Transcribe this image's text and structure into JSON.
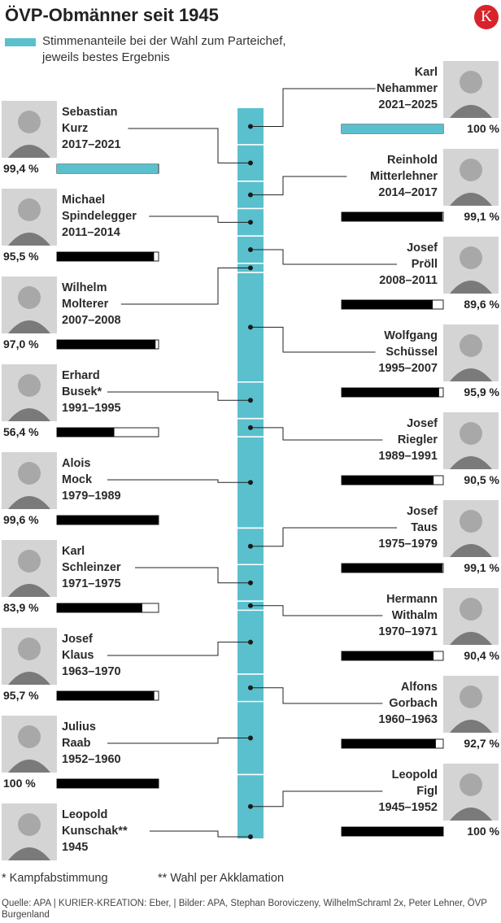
{
  "title": "ÖVP-Obmänner seit 1945",
  "logo_letter": "K",
  "legend": {
    "label": "Stimmenanteile bei der Wahl zum Parteichef, jeweils bestes Ergebnis",
    "color": "#5bc0cd"
  },
  "footnotes": {
    "star": "* Kampfabstimmung",
    "double_star": "** Wahl per Akklamation"
  },
  "source": "Quelle: APA | KURIER-KREATION: Eber, | Bilder: APA, Stephan Boroviczeny, WilhelmSchraml 2x, Peter Lehner, ÖVP Burgenland",
  "colors": {
    "timeline": "#5bc0cd",
    "bar": "#000000",
    "highlight": "#5bc0cd",
    "connector": "#222222"
  },
  "chart_data": {
    "type": "bar",
    "unit": "%",
    "xlim": [
      0,
      100
    ],
    "leaders": [
      {
        "name": [
          "Karl",
          "Nehammer"
        ],
        "period": "2021–2025",
        "start": 2021,
        "end": 2025,
        "value": 100,
        "value_label": "100 %",
        "side": "right",
        "highlight": true
      },
      {
        "name": [
          "Sebastian",
          "Kurz"
        ],
        "period": "2017–2021",
        "start": 2017,
        "end": 2021,
        "value": 99.4,
        "value_label": "99,4 %",
        "side": "left",
        "highlight": true
      },
      {
        "name": [
          "Reinhold",
          "Mitterlehner"
        ],
        "period": "2014–2017",
        "start": 2014,
        "end": 2017,
        "value": 99.1,
        "value_label": "99,1 %",
        "side": "right",
        "highlight": false
      },
      {
        "name": [
          "Michael",
          "Spindelegger"
        ],
        "period": "2011–2014",
        "start": 2011,
        "end": 2014,
        "value": 95.5,
        "value_label": "95,5 %",
        "side": "left",
        "highlight": false
      },
      {
        "name": [
          "Josef",
          "Pröll"
        ],
        "period": "2008–2011",
        "start": 2008,
        "end": 2011,
        "value": 89.6,
        "value_label": "89,6 %",
        "side": "right",
        "highlight": false
      },
      {
        "name": [
          "Wilhelm",
          "Molterer"
        ],
        "period": "2007–2008",
        "start": 2007,
        "end": 2008,
        "value": 97.0,
        "value_label": "97,0 %",
        "side": "left",
        "highlight": false
      },
      {
        "name": [
          "Wolfgang",
          "Schüssel"
        ],
        "period": "1995–2007",
        "start": 1995,
        "end": 2007,
        "value": 95.9,
        "value_label": "95,9 %",
        "side": "right",
        "highlight": false
      },
      {
        "name": [
          "Erhard",
          "Busek*"
        ],
        "period": "1991–1995",
        "start": 1991,
        "end": 1995,
        "value": 56.4,
        "value_label": "56,4 %",
        "side": "left",
        "highlight": false
      },
      {
        "name": [
          "Josef",
          "Riegler"
        ],
        "period": "1989–1991",
        "start": 1989,
        "end": 1991,
        "value": 90.5,
        "value_label": "90,5 %",
        "side": "right",
        "highlight": false
      },
      {
        "name": [
          "Alois",
          "Mock"
        ],
        "period": "1979–1989",
        "start": 1979,
        "end": 1989,
        "value": 99.6,
        "value_label": "99,6 %",
        "side": "left",
        "highlight": false
      },
      {
        "name": [
          "Josef",
          "Taus"
        ],
        "period": "1975–1979",
        "start": 1975,
        "end": 1979,
        "value": 99.1,
        "value_label": "99,1 %",
        "side": "right",
        "highlight": false
      },
      {
        "name": [
          "Karl",
          "Schleinzer"
        ],
        "period": "1971–1975",
        "start": 1971,
        "end": 1975,
        "value": 83.9,
        "value_label": "83,9 %",
        "side": "left",
        "highlight": false
      },
      {
        "name": [
          "Hermann",
          "Withalm"
        ],
        "period": "1970–1971",
        "start": 1970,
        "end": 1971,
        "value": 90.4,
        "value_label": "90,4 %",
        "side": "right",
        "highlight": false
      },
      {
        "name": [
          "Josef",
          "Klaus"
        ],
        "period": "1963–1970",
        "start": 1963,
        "end": 1970,
        "value": 95.7,
        "value_label": "95,7 %",
        "side": "left",
        "highlight": false
      },
      {
        "name": [
          "Alfons",
          "Gorbach"
        ],
        "period": "1960–1963",
        "start": 1960,
        "end": 1963,
        "value": 92.7,
        "value_label": "92,7 %",
        "side": "right",
        "highlight": false
      },
      {
        "name": [
          "Julius",
          "Raab"
        ],
        "period": "1952–1960",
        "start": 1952,
        "end": 1960,
        "value": 100,
        "value_label": "100 %",
        "side": "left",
        "highlight": false
      },
      {
        "name": [
          "Leopold",
          "Figl"
        ],
        "period": "1945–1952",
        "start": 1945,
        "end": 1952,
        "value": 100,
        "value_label": "100 %",
        "side": "right",
        "highlight": false
      },
      {
        "name": [
          "Leopold",
          "Kunschak**"
        ],
        "period": "1945",
        "start": 1945,
        "end": 1945,
        "value": null,
        "value_label": "",
        "side": "left",
        "highlight": false
      }
    ]
  }
}
